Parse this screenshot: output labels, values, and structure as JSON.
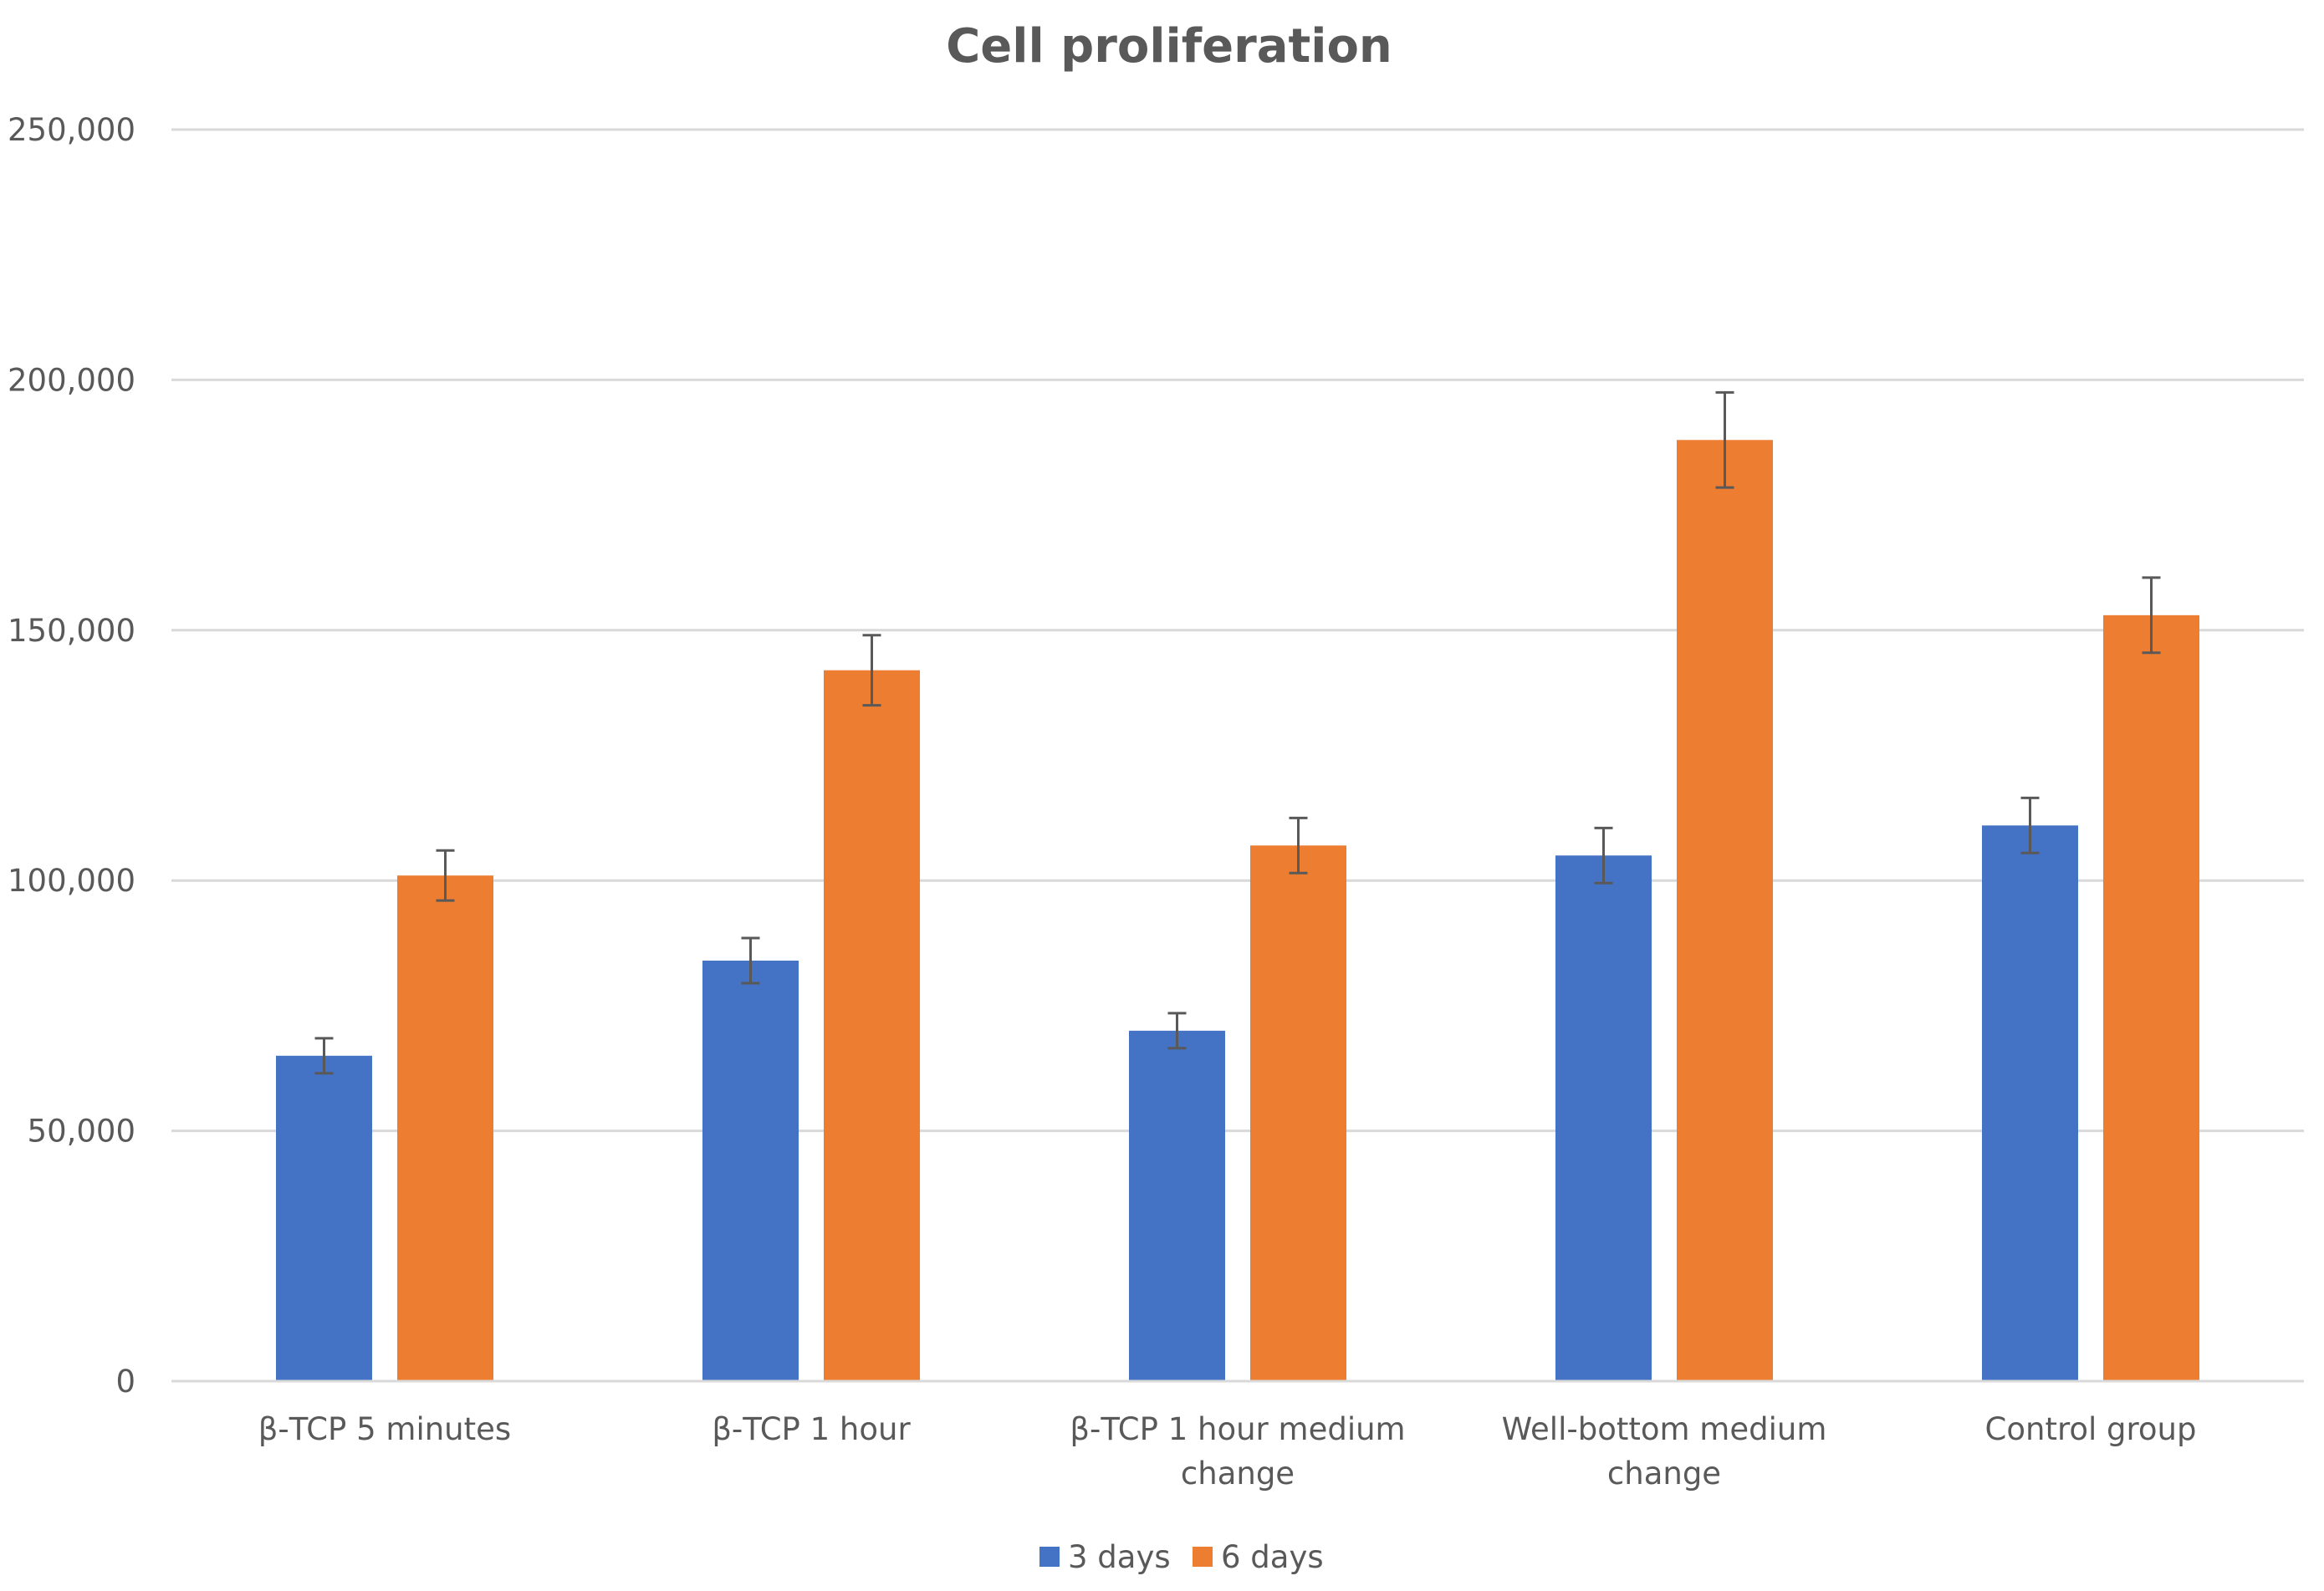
{
  "chart_data": {
    "type": "bar",
    "title": "Cell   proliferation",
    "xlabel": "",
    "ylabel": "",
    "ylim": [
      0,
      250000
    ],
    "yticks": [
      0,
      50000,
      100000,
      150000,
      200000,
      250000
    ],
    "ytick_labels": [
      "0",
      "50,000",
      "100,000",
      "150,000",
      "200,000",
      "250,000"
    ],
    "grid": true,
    "legend_position": "bottom",
    "categories": [
      [
        "β-TCP 5 minutes"
      ],
      [
        "β-TCP 1 hour"
      ],
      [
        "β-TCP 1 hour medium",
        "change"
      ],
      [
        "Well-bottom medium",
        "change"
      ],
      [
        "Control group"
      ]
    ],
    "series": [
      {
        "name": "3 days",
        "color": "#4472c4",
        "values": [
          65000,
          84000,
          70000,
          105000,
          111000
        ],
        "errors": [
          3500,
          4500,
          3500,
          5500,
          5500
        ]
      },
      {
        "name": "6 days",
        "color": "#ed7d31",
        "values": [
          101000,
          142000,
          107000,
          188000,
          153000
        ],
        "errors": [
          5000,
          7000,
          5500,
          9500,
          7500
        ]
      }
    ]
  }
}
